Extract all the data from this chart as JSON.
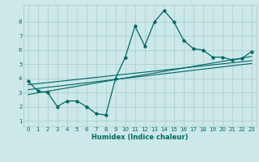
{
  "xlabel": "Humidex (Indice chaleur)",
  "bg_color": "#cce8e8",
  "grid_color": "#aacccc",
  "line_color": "#006666",
  "xlim": [
    -0.5,
    23.5
  ],
  "ylim": [
    0.6,
    9.2
  ],
  "yticks": [
    1,
    2,
    3,
    4,
    5,
    6,
    7,
    8
  ],
  "xticks": [
    0,
    1,
    2,
    3,
    4,
    5,
    6,
    7,
    8,
    9,
    10,
    11,
    12,
    13,
    14,
    15,
    16,
    17,
    18,
    19,
    20,
    21,
    22,
    23
  ],
  "series": {
    "main": {
      "x": [
        0,
        1,
        2,
        3,
        4,
        5,
        6,
        7,
        8,
        9,
        10,
        11,
        12,
        13,
        14,
        15,
        16,
        17,
        18,
        19,
        20,
        21,
        22,
        23
      ],
      "y": [
        3.8,
        3.1,
        3.0,
        2.0,
        2.4,
        2.4,
        2.0,
        1.5,
        1.4,
        4.0,
        5.5,
        7.7,
        6.3,
        8.0,
        8.8,
        8.0,
        6.7,
        6.1,
        6.0,
        5.5,
        5.5,
        5.3,
        5.4,
        5.9
      ]
    },
    "trend1": {
      "x": [
        0,
        23
      ],
      "y": [
        3.55,
        5.25
      ]
    },
    "trend2": {
      "x": [
        0,
        23
      ],
      "y": [
        3.2,
        5.05
      ]
    },
    "trend3": {
      "x": [
        0,
        23
      ],
      "y": [
        2.85,
        5.55
      ]
    }
  }
}
